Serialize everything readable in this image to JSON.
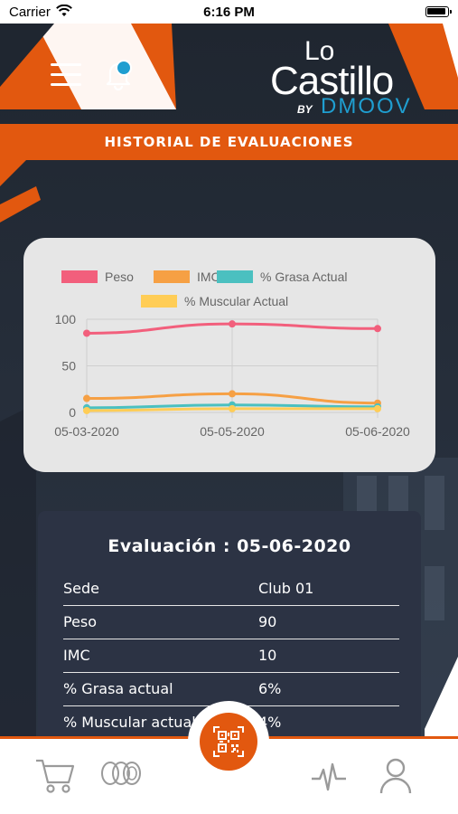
{
  "status_bar": {
    "carrier": "Carrier",
    "time": "6:16 PM"
  },
  "header": {
    "logo": {
      "line1": "Lo",
      "line2": "Castillo",
      "by": "BY",
      "brand": "DMOOV"
    },
    "notification_badge": true
  },
  "page_title": "HISTORIAL DE EVALUACIONES",
  "chart_data": {
    "type": "line",
    "x": [
      "05-03-2020",
      "05-05-2020",
      "05-06-2020"
    ],
    "yticks": [
      "0",
      "50",
      "100"
    ],
    "ylim": [
      0,
      100
    ],
    "grid": true,
    "legend_position": "top",
    "series": [
      {
        "name": "Peso",
        "color": "#f25f7c",
        "values": [
          85,
          95,
          90
        ]
      },
      {
        "name": "IMC",
        "color": "#f6a044",
        "values": [
          15,
          20,
          10
        ]
      },
      {
        "name": "% Grasa Actual",
        "color": "#4bc0c0",
        "values": [
          5,
          8,
          6
        ]
      },
      {
        "name": "% Muscular Actual",
        "color": "#ffcd56",
        "values": [
          2,
          4,
          4
        ]
      }
    ]
  },
  "evaluation": {
    "title": "Evaluación : 05-06-2020",
    "rows": [
      {
        "label": "Sede",
        "value": "Club 01"
      },
      {
        "label": "Peso",
        "value": "90"
      },
      {
        "label": "IMC",
        "value": "10"
      },
      {
        "label": "% Grasa actual",
        "value": "6%"
      },
      {
        "label": "% Muscular actual",
        "value": "4%"
      }
    ]
  },
  "bottom_nav": {
    "items": [
      {
        "icon": "cart-icon"
      },
      {
        "icon": "coins-icon"
      },
      {
        "icon": "qr-code-icon"
      },
      {
        "icon": "activity-pulse-icon"
      },
      {
        "icon": "user-profile-icon"
      }
    ]
  },
  "colors": {
    "accent": "#e2580f",
    "brand_blue": "#1f9ed0",
    "card_dark": "#2c3344"
  }
}
